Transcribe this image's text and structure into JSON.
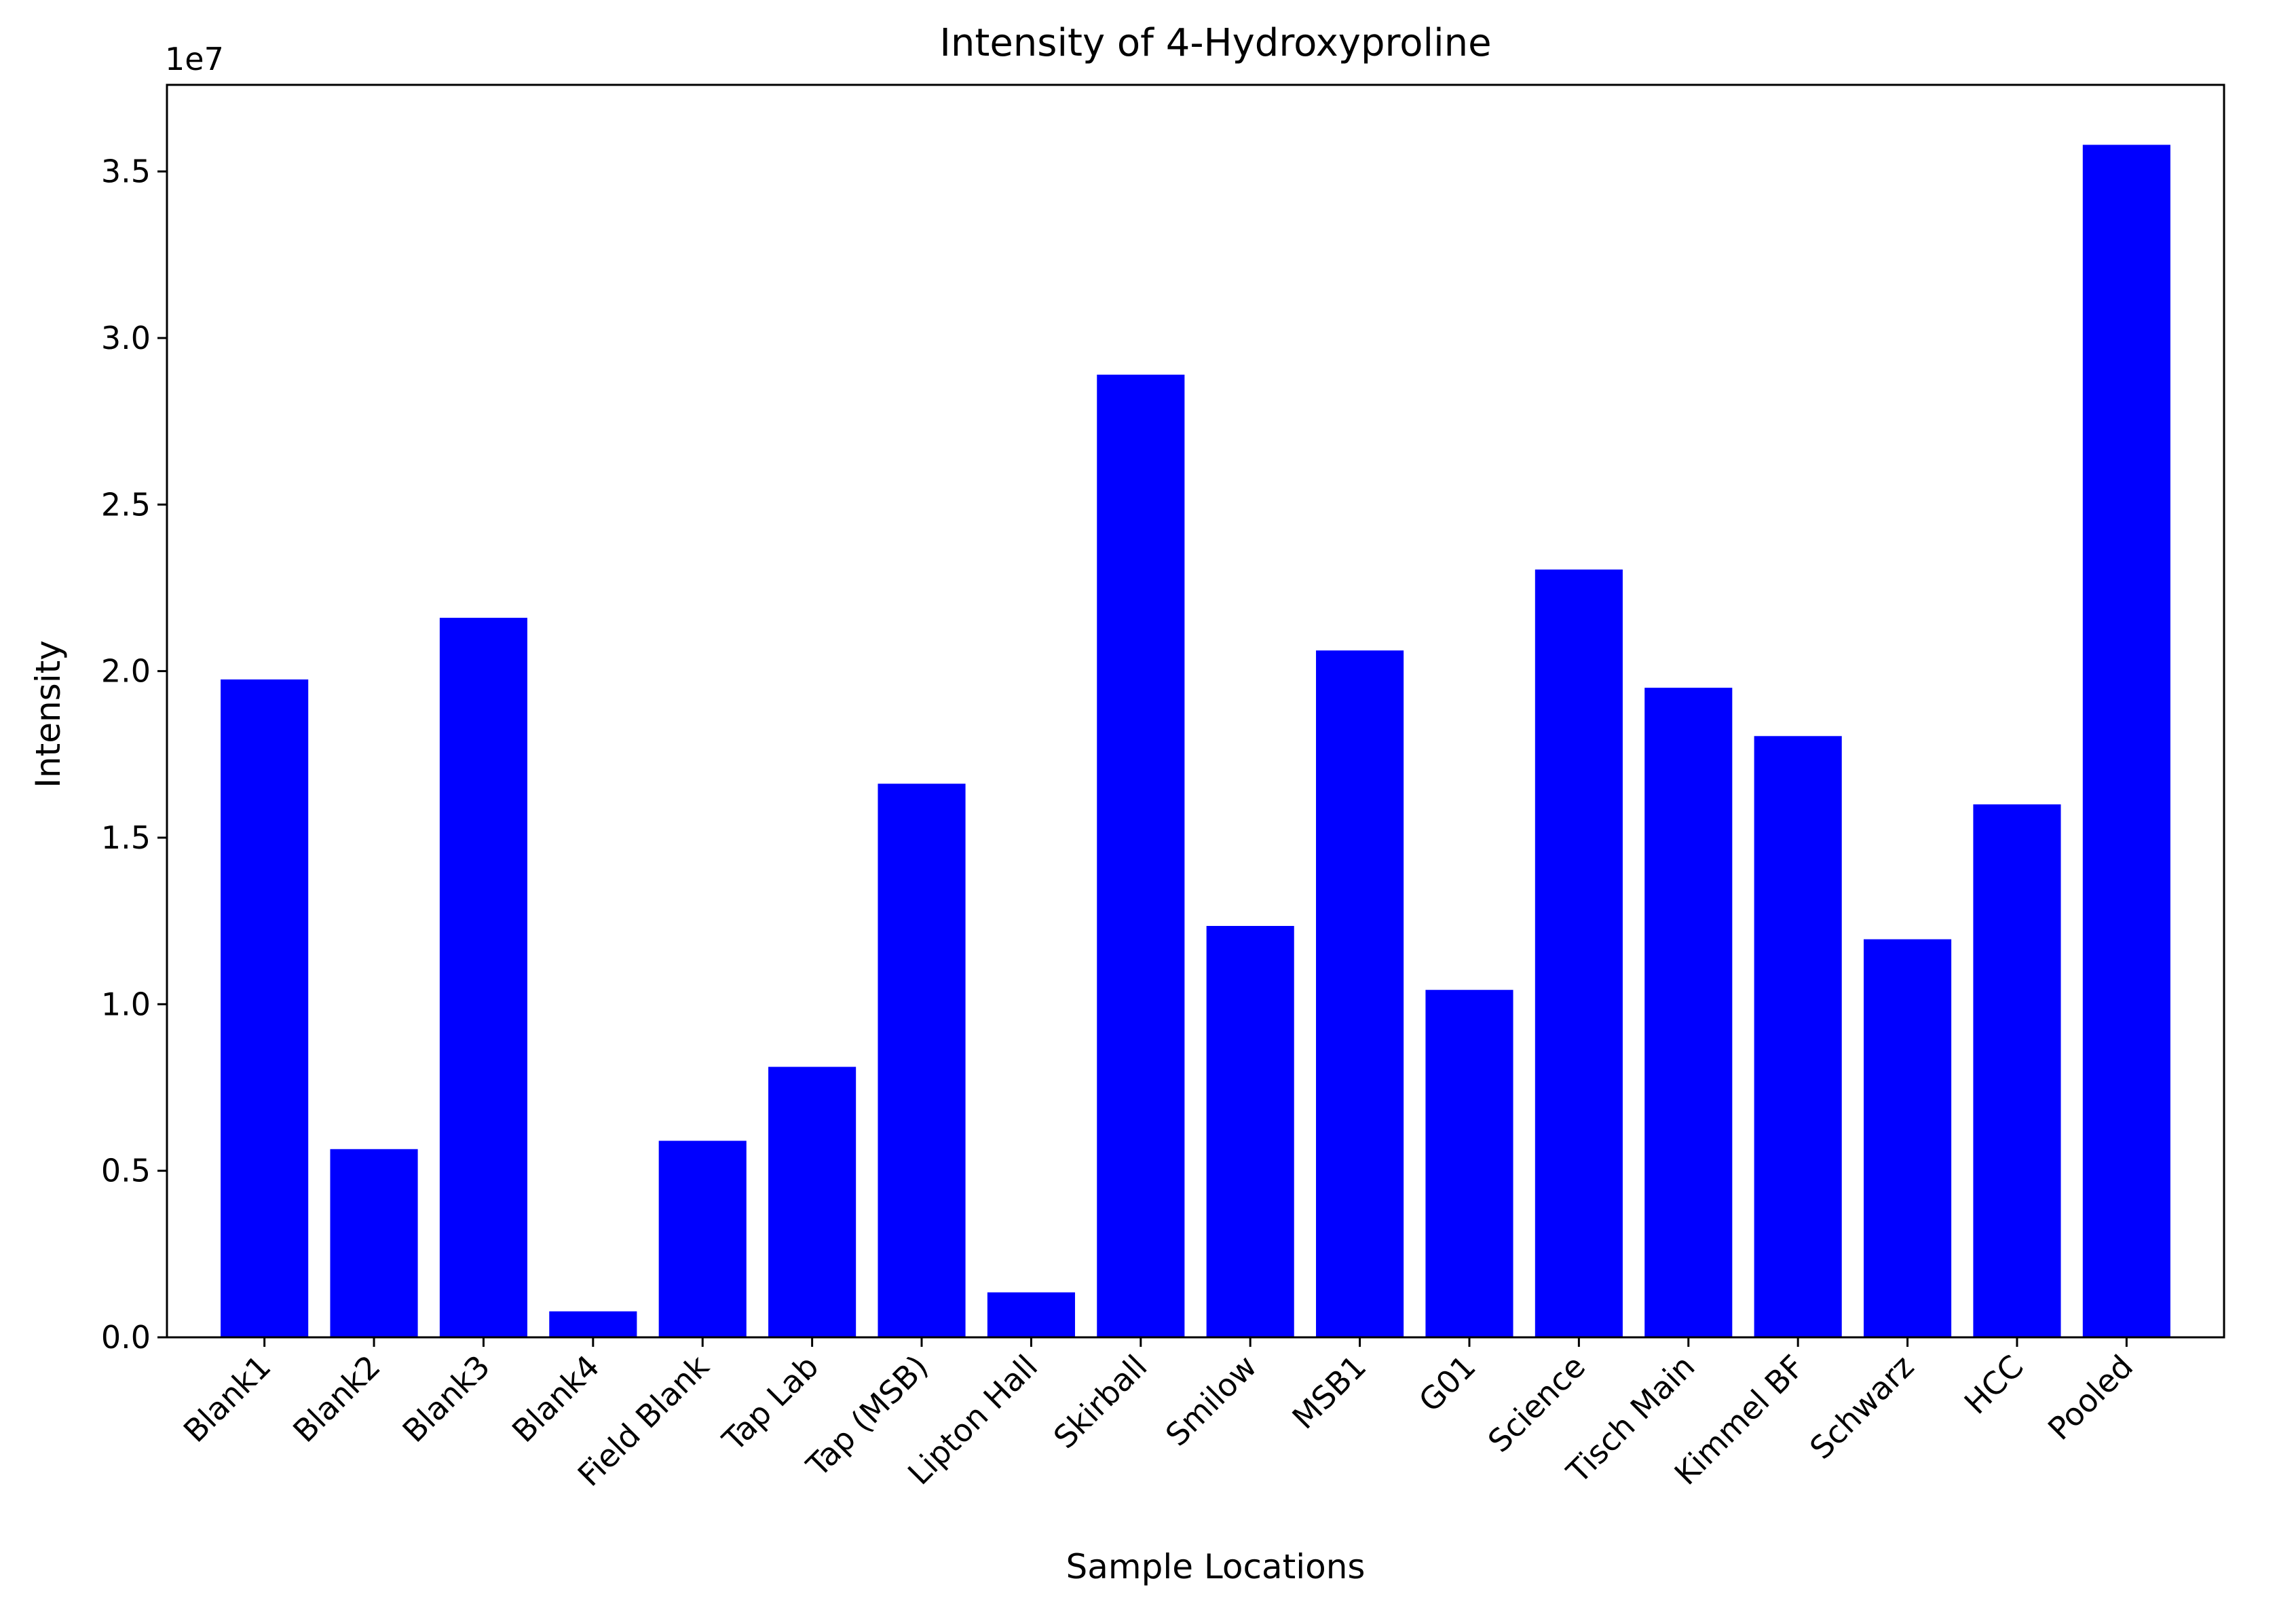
{
  "chart_data": {
    "type": "bar",
    "title": "Intensity of 4-Hydroxyproline",
    "xlabel": "Sample Locations",
    "ylabel": "Intensity",
    "y_offset_label": "1e7",
    "y_scale_factor": 10000000,
    "ylim": [
      0,
      37600000
    ],
    "yticks": [
      0,
      5000000,
      10000000,
      15000000,
      20000000,
      25000000,
      30000000,
      35000000
    ],
    "ytick_labels": [
      "0.0",
      "0.5",
      "1.0",
      "1.5",
      "2.0",
      "2.5",
      "3.0",
      "3.5"
    ],
    "grid": false,
    "bar_color": "#0000ff",
    "categories": [
      "Blank1",
      "Blank2",
      "Blank3",
      "Blank4",
      "Field Blank",
      "Tap Lab",
      "Tap (MSB)",
      "Lipton Hall",
      "Skirball",
      "Smilow",
      "MSB1",
      "G01",
      "Science",
      "Tisch Main",
      "Kimmel BF",
      "Schwarz",
      "HCC",
      "Pooled"
    ],
    "values": [
      19750000,
      5650000,
      21600000,
      780000,
      5900000,
      8120000,
      16620000,
      1350000,
      28900000,
      12350000,
      20620000,
      10430000,
      23050000,
      19500000,
      18050000,
      11950000,
      16000000,
      35800000
    ]
  }
}
